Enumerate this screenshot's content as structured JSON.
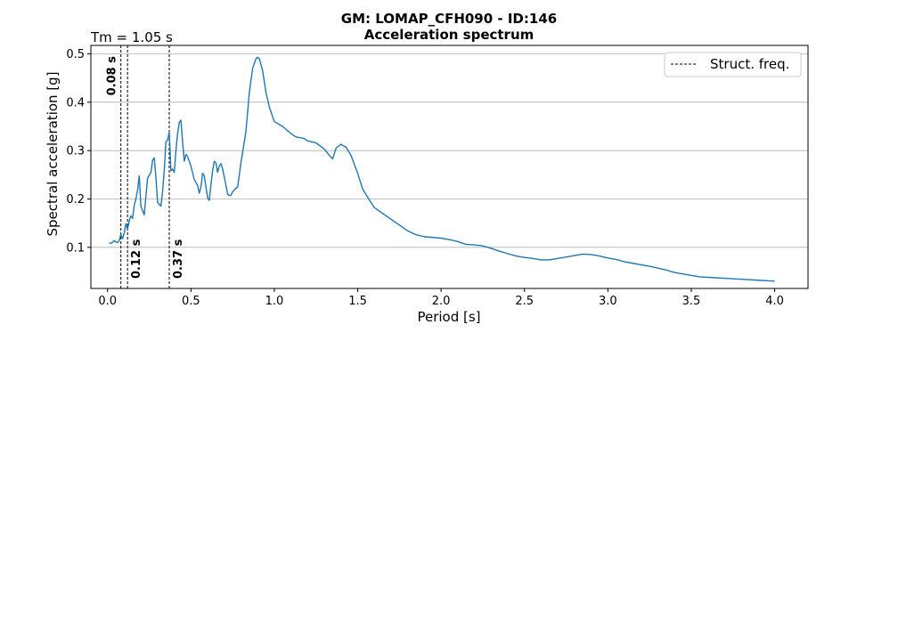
{
  "chart_data": {
    "type": "line",
    "title": "GM: LOMAP_CFH090 - ID:146",
    "subtitle": "Acceleration spectrum",
    "annotation_left": "Tm = 1.05 s",
    "xlabel": "Period [s]",
    "ylabel": "Spectral acceleration [g]",
    "xlim": [
      -0.1,
      4.2
    ],
    "ylim": [
      0.015,
      0.5175
    ],
    "xticks": [
      0.0,
      0.5,
      1.0,
      1.5,
      2.0,
      2.5,
      3.0,
      3.5,
      4.0
    ],
    "xtick_labels": [
      "0.0",
      "0.5",
      "1.0",
      "1.5",
      "2.0",
      "2.5",
      "3.0",
      "3.5",
      "4.0"
    ],
    "yticks": [
      0.1,
      0.2,
      0.3,
      0.4,
      0.5
    ],
    "ytick_labels": [
      "0.1",
      "0.2",
      "0.3",
      "0.4",
      "0.5"
    ],
    "grid": "horizontal",
    "legend_position": "top-right",
    "line_color": "#1f77b4",
    "struct_color": "#000000",
    "series": [
      {
        "values": [
          [
            0.01,
            0.108
          ],
          [
            0.03,
            0.11
          ],
          [
            0.04,
            0.114
          ],
          [
            0.05,
            0.111
          ],
          [
            0.06,
            0.11
          ],
          [
            0.07,
            0.114
          ],
          [
            0.08,
            0.127
          ],
          [
            0.09,
            0.118
          ],
          [
            0.1,
            0.13
          ],
          [
            0.11,
            0.149
          ],
          [
            0.12,
            0.138
          ],
          [
            0.13,
            0.155
          ],
          [
            0.14,
            0.165
          ],
          [
            0.15,
            0.16
          ],
          [
            0.16,
            0.187
          ],
          [
            0.17,
            0.2
          ],
          [
            0.18,
            0.218
          ],
          [
            0.19,
            0.248
          ],
          [
            0.2,
            0.185
          ],
          [
            0.22,
            0.167
          ],
          [
            0.23,
            0.205
          ],
          [
            0.24,
            0.243
          ],
          [
            0.26,
            0.255
          ],
          [
            0.27,
            0.28
          ],
          [
            0.28,
            0.285
          ],
          [
            0.29,
            0.245
          ],
          [
            0.3,
            0.193
          ],
          [
            0.32,
            0.185
          ],
          [
            0.33,
            0.215
          ],
          [
            0.34,
            0.26
          ],
          [
            0.35,
            0.318
          ],
          [
            0.36,
            0.322
          ],
          [
            0.37,
            0.338
          ],
          [
            0.38,
            0.258
          ],
          [
            0.39,
            0.262
          ],
          [
            0.4,
            0.255
          ],
          [
            0.41,
            0.3
          ],
          [
            0.42,
            0.335
          ],
          [
            0.43,
            0.358
          ],
          [
            0.44,
            0.363
          ],
          [
            0.45,
            0.318
          ],
          [
            0.46,
            0.278
          ],
          [
            0.47,
            0.292
          ],
          [
            0.48,
            0.288
          ],
          [
            0.5,
            0.268
          ],
          [
            0.52,
            0.24
          ],
          [
            0.54,
            0.228
          ],
          [
            0.55,
            0.212
          ],
          [
            0.56,
            0.225
          ],
          [
            0.57,
            0.253
          ],
          [
            0.58,
            0.248
          ],
          [
            0.59,
            0.225
          ],
          [
            0.6,
            0.202
          ],
          [
            0.61,
            0.197
          ],
          [
            0.62,
            0.23
          ],
          [
            0.63,
            0.258
          ],
          [
            0.64,
            0.278
          ],
          [
            0.65,
            0.275
          ],
          [
            0.66,
            0.255
          ],
          [
            0.67,
            0.268
          ],
          [
            0.68,
            0.273
          ],
          [
            0.69,
            0.262
          ],
          [
            0.7,
            0.245
          ],
          [
            0.71,
            0.228
          ],
          [
            0.72,
            0.21
          ],
          [
            0.73,
            0.207
          ],
          [
            0.74,
            0.208
          ],
          [
            0.75,
            0.215
          ],
          [
            0.77,
            0.222
          ],
          [
            0.78,
            0.225
          ],
          [
            0.8,
            0.275
          ],
          [
            0.83,
            0.34
          ],
          [
            0.85,
            0.42
          ],
          [
            0.87,
            0.47
          ],
          [
            0.89,
            0.49
          ],
          [
            0.9,
            0.493
          ],
          [
            0.91,
            0.49
          ],
          [
            0.93,
            0.465
          ],
          [
            0.95,
            0.42
          ],
          [
            0.97,
            0.39
          ],
          [
            1.0,
            0.36
          ],
          [
            1.05,
            0.35
          ],
          [
            1.1,
            0.335
          ],
          [
            1.13,
            0.328
          ],
          [
            1.15,
            0.327
          ],
          [
            1.18,
            0.325
          ],
          [
            1.2,
            0.32
          ],
          [
            1.25,
            0.316
          ],
          [
            1.3,
            0.303
          ],
          [
            1.33,
            0.29
          ],
          [
            1.35,
            0.283
          ],
          [
            1.37,
            0.305
          ],
          [
            1.4,
            0.313
          ],
          [
            1.43,
            0.307
          ],
          [
            1.46,
            0.29
          ],
          [
            1.5,
            0.253
          ],
          [
            1.53,
            0.22
          ],
          [
            1.57,
            0.198
          ],
          [
            1.6,
            0.182
          ],
          [
            1.65,
            0.17
          ],
          [
            1.7,
            0.158
          ],
          [
            1.75,
            0.146
          ],
          [
            1.8,
            0.134
          ],
          [
            1.85,
            0.126
          ],
          [
            1.9,
            0.122
          ],
          [
            2.0,
            0.119
          ],
          [
            2.05,
            0.116
          ],
          [
            2.1,
            0.112
          ],
          [
            2.15,
            0.106
          ],
          [
            2.2,
            0.105
          ],
          [
            2.25,
            0.103
          ],
          [
            2.3,
            0.098
          ],
          [
            2.35,
            0.092
          ],
          [
            2.4,
            0.087
          ],
          [
            2.45,
            0.082
          ],
          [
            2.5,
            0.079
          ],
          [
            2.55,
            0.077
          ],
          [
            2.6,
            0.074
          ],
          [
            2.65,
            0.074
          ],
          [
            2.7,
            0.077
          ],
          [
            2.75,
            0.08
          ],
          [
            2.8,
            0.083
          ],
          [
            2.85,
            0.086
          ],
          [
            2.9,
            0.085
          ],
          [
            2.95,
            0.082
          ],
          [
            3.0,
            0.078
          ],
          [
            3.05,
            0.075
          ],
          [
            3.1,
            0.07
          ],
          [
            3.15,
            0.067
          ],
          [
            3.2,
            0.064
          ],
          [
            3.25,
            0.061
          ],
          [
            3.3,
            0.057
          ],
          [
            3.35,
            0.053
          ],
          [
            3.4,
            0.048
          ],
          [
            3.45,
            0.045
          ],
          [
            3.5,
            0.042
          ],
          [
            3.55,
            0.039
          ],
          [
            3.6,
            0.038
          ],
          [
            3.7,
            0.036
          ],
          [
            3.8,
            0.034
          ],
          [
            3.9,
            0.032
          ],
          [
            4.0,
            0.03
          ]
        ]
      }
    ],
    "legend": [
      {
        "label": "Struct. freq.",
        "style": "dashed"
      }
    ],
    "struct_freqs": [
      {
        "x": 0.08,
        "label": "0.08 s",
        "label_pos": "top"
      },
      {
        "x": 0.12,
        "label": "0.12 s",
        "label_pos": "bottom"
      },
      {
        "x": 0.37,
        "label": "0.37 s",
        "label_pos": "bottom"
      }
    ]
  }
}
